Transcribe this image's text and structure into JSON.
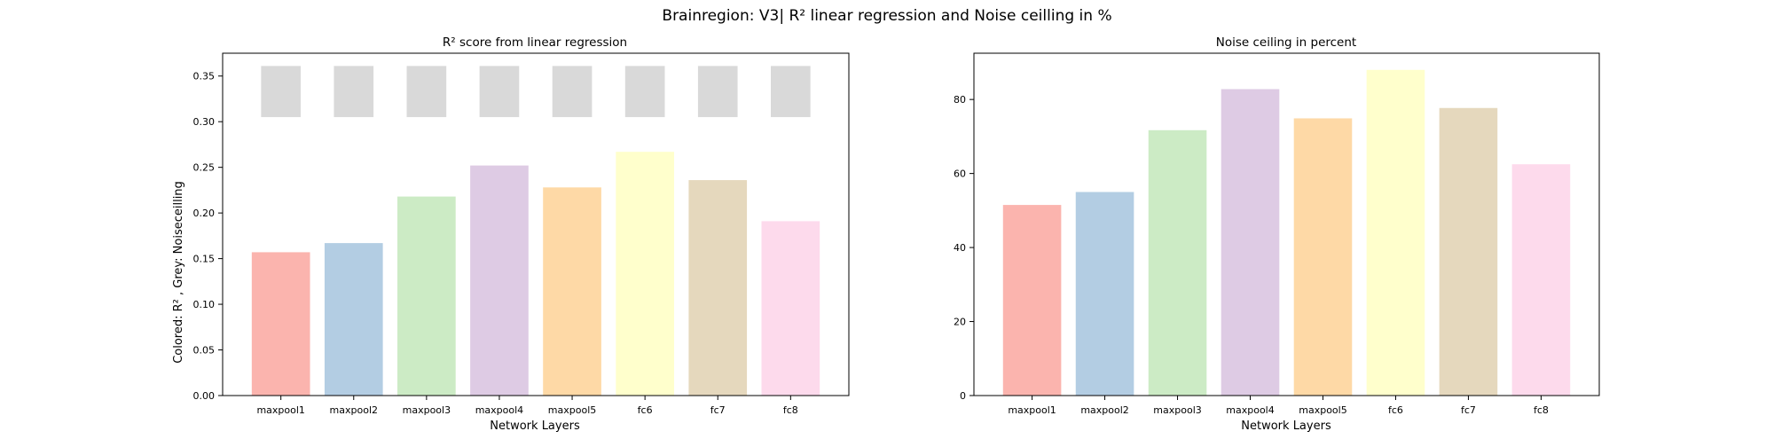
{
  "figure": {
    "suptitle": "Brainregion: V3| R² linear regression and Noise ceilling in %"
  },
  "chart_data": [
    {
      "type": "bar",
      "title": "R² score from linear regression",
      "xlabel": "Network Layers",
      "ylabel": "Colored: R² , Grey: Noiseceilling",
      "categories": [
        "maxpool1",
        "maxpool2",
        "maxpool3",
        "maxpool4",
        "maxpool5",
        "fc6",
        "fc7",
        "fc8"
      ],
      "values": [
        0.157,
        0.167,
        0.218,
        0.252,
        0.228,
        0.267,
        0.236,
        0.191
      ],
      "noise_ceiling_range": [
        0.305,
        0.361
      ],
      "ylim": [
        0,
        0.375
      ],
      "yticks": [
        "0.00",
        "0.05",
        "0.10",
        "0.15",
        "0.20",
        "0.25",
        "0.30",
        "0.35"
      ],
      "ytick_values": [
        0,
        0.05,
        0.1,
        0.15,
        0.2,
        0.25,
        0.3,
        0.35
      ],
      "colors": [
        "#fbb4ae",
        "#b3cde3",
        "#ccebc5",
        "#decbe4",
        "#fed9a6",
        "#ffffcc",
        "#e5d8bd",
        "#fddaec"
      ],
      "noise_color": "#d9d9d9",
      "grid": false
    },
    {
      "type": "bar",
      "title": "Noise ceiling in percent",
      "xlabel": "Network Layers",
      "ylabel": "",
      "categories": [
        "maxpool1",
        "maxpool2",
        "maxpool3",
        "maxpool4",
        "maxpool5",
        "fc6",
        "fc7",
        "fc8"
      ],
      "values": [
        51.5,
        55.0,
        71.7,
        82.8,
        74.9,
        88.0,
        77.7,
        62.5
      ],
      "ylim": [
        0,
        92.5
      ],
      "yticks": [
        "0",
        "20",
        "40",
        "60",
        "80"
      ],
      "ytick_values": [
        0,
        20,
        40,
        60,
        80
      ],
      "colors": [
        "#fbb4ae",
        "#b3cde3",
        "#ccebc5",
        "#decbe4",
        "#fed9a6",
        "#ffffcc",
        "#e5d8bd",
        "#fddaec"
      ],
      "grid": false
    }
  ]
}
